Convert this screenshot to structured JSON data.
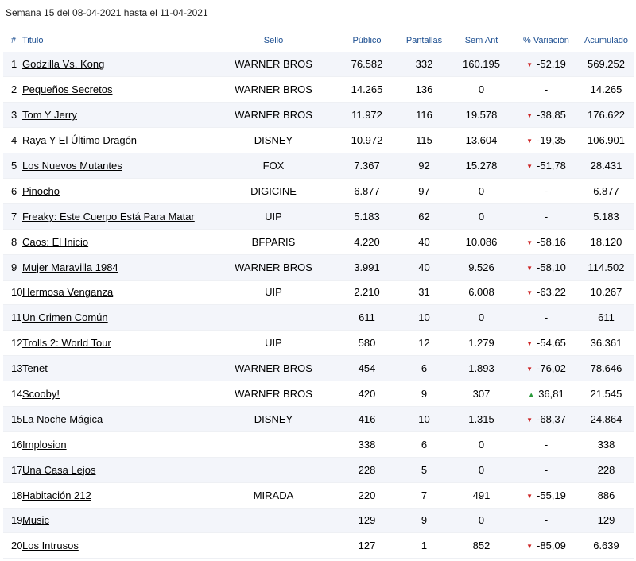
{
  "caption": "Semana 15 del 08-04-2021 hasta el 11-04-2021",
  "headers": {
    "rank": "#",
    "title": "Titulo",
    "sello": "Sello",
    "publico": "Público",
    "pantallas": "Pantallas",
    "sem_ant": "Sem Ant",
    "variacion": "% Variación",
    "acumulado": "Acumulado"
  },
  "trend_icons": {
    "down": "▼",
    "up": "▲"
  },
  "colors": {
    "header": "#1d4f91",
    "down": "#cc2222",
    "up": "#2a9a3a",
    "stripe": "#f3f5fa"
  },
  "rows": [
    {
      "rank": "1",
      "title": "Godzilla Vs. Kong",
      "sello": "WARNER BROS",
      "publico": "76.582",
      "pantallas": "332",
      "sem_ant": "160.195",
      "trend": "down",
      "variacion": "-52,19",
      "acumulado": "569.252"
    },
    {
      "rank": "2",
      "title": "Pequeños Secretos",
      "sello": "WARNER BROS",
      "publico": "14.265",
      "pantallas": "136",
      "sem_ant": "0",
      "trend": "none",
      "variacion": "-",
      "acumulado": "14.265"
    },
    {
      "rank": "3",
      "title": "Tom Y Jerry",
      "sello": "WARNER BROS",
      "publico": "11.972",
      "pantallas": "116",
      "sem_ant": "19.578",
      "trend": "down",
      "variacion": "-38,85",
      "acumulado": "176.622"
    },
    {
      "rank": "4",
      "title": "Raya Y El Último Dragón",
      "sello": "DISNEY",
      "publico": "10.972",
      "pantallas": "115",
      "sem_ant": "13.604",
      "trend": "down",
      "variacion": "-19,35",
      "acumulado": "106.901"
    },
    {
      "rank": "5",
      "title": "Los Nuevos Mutantes",
      "sello": "FOX",
      "publico": "7.367",
      "pantallas": "92",
      "sem_ant": "15.278",
      "trend": "down",
      "variacion": "-51,78",
      "acumulado": "28.431"
    },
    {
      "rank": "6",
      "title": "Pinocho",
      "sello": "DIGICINE",
      "publico": "6.877",
      "pantallas": "97",
      "sem_ant": "0",
      "trend": "none",
      "variacion": "-",
      "acumulado": "6.877"
    },
    {
      "rank": "7",
      "title": "Freaky: Este Cuerpo Está Para Matar",
      "sello": "UIP",
      "publico": "5.183",
      "pantallas": "62",
      "sem_ant": "0",
      "trend": "none",
      "variacion": "-",
      "acumulado": "5.183"
    },
    {
      "rank": "8",
      "title": "Caos: El Inicio",
      "sello": "BFPARIS",
      "publico": "4.220",
      "pantallas": "40",
      "sem_ant": "10.086",
      "trend": "down",
      "variacion": "-58,16",
      "acumulado": "18.120"
    },
    {
      "rank": "9",
      "title": "Mujer Maravilla 1984",
      "sello": "WARNER BROS",
      "publico": "3.991",
      "pantallas": "40",
      "sem_ant": "9.526",
      "trend": "down",
      "variacion": "-58,10",
      "acumulado": "114.502"
    },
    {
      "rank": "10",
      "title": "Hermosa Venganza",
      "sello": "UIP",
      "publico": "2.210",
      "pantallas": "31",
      "sem_ant": "6.008",
      "trend": "down",
      "variacion": "-63,22",
      "acumulado": "10.267"
    },
    {
      "rank": "11",
      "title": "Un Crimen Común",
      "sello": "",
      "publico": "611",
      "pantallas": "10",
      "sem_ant": "0",
      "trend": "none",
      "variacion": "-",
      "acumulado": "611"
    },
    {
      "rank": "12",
      "title": "Trolls 2: World Tour",
      "sello": "UIP",
      "publico": "580",
      "pantallas": "12",
      "sem_ant": "1.279",
      "trend": "down",
      "variacion": "-54,65",
      "acumulado": "36.361"
    },
    {
      "rank": "13",
      "title": "Tenet",
      "sello": "WARNER BROS",
      "publico": "454",
      "pantallas": "6",
      "sem_ant": "1.893",
      "trend": "down",
      "variacion": "-76,02",
      "acumulado": "78.646"
    },
    {
      "rank": "14",
      "title": "Scooby!",
      "sello": "WARNER BROS",
      "publico": "420",
      "pantallas": "9",
      "sem_ant": "307",
      "trend": "up",
      "variacion": "36,81",
      "acumulado": "21.545"
    },
    {
      "rank": "15",
      "title": "La Noche Mágica",
      "sello": "DISNEY",
      "publico": "416",
      "pantallas": "10",
      "sem_ant": "1.315",
      "trend": "down",
      "variacion": "-68,37",
      "acumulado": "24.864"
    },
    {
      "rank": "16",
      "title": "Implosion",
      "sello": "",
      "publico": "338",
      "pantallas": "6",
      "sem_ant": "0",
      "trend": "none",
      "variacion": "-",
      "acumulado": "338"
    },
    {
      "rank": "17",
      "title": "Una Casa Lejos",
      "sello": "",
      "publico": "228",
      "pantallas": "5",
      "sem_ant": "0",
      "trend": "none",
      "variacion": "-",
      "acumulado": "228"
    },
    {
      "rank": "18",
      "title": "Habitación 212",
      "sello": "MIRADA",
      "publico": "220",
      "pantallas": "7",
      "sem_ant": "491",
      "trend": "down",
      "variacion": "-55,19",
      "acumulado": "886"
    },
    {
      "rank": "19",
      "title": "Music",
      "sello": "",
      "publico": "129",
      "pantallas": "9",
      "sem_ant": "0",
      "trend": "none",
      "variacion": "-",
      "acumulado": "129"
    },
    {
      "rank": "20",
      "title": "Los Intrusos",
      "sello": "",
      "publico": "127",
      "pantallas": "1",
      "sem_ant": "852",
      "trend": "down",
      "variacion": "-85,09",
      "acumulado": "6.639"
    }
  ]
}
